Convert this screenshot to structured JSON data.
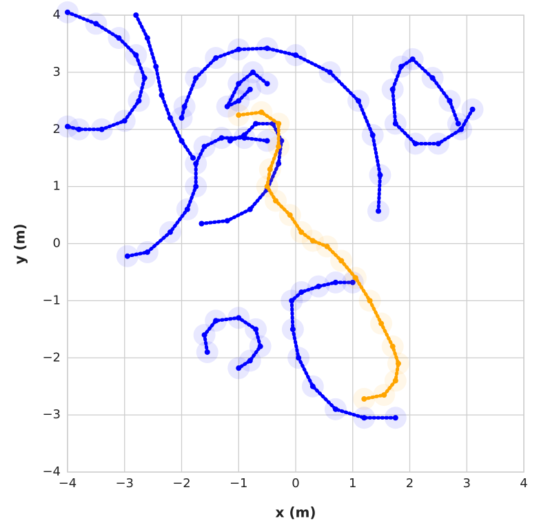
{
  "chart_data": {
    "type": "scatter",
    "x_label": "x (m)",
    "y_label": "y (m)",
    "xlim": [
      -4,
      4
    ],
    "ylim": [
      -4,
      4
    ],
    "xticks": [
      {
        "value": -4,
        "label": "−4"
      },
      {
        "value": -3,
        "label": "−3"
      },
      {
        "value": -2,
        "label": "−2"
      },
      {
        "value": -1,
        "label": "−1"
      },
      0,
      1,
      2,
      3,
      4
    ],
    "yticks": [
      {
        "value": -4,
        "label": "−4"
      },
      {
        "value": -3,
        "label": "−3"
      },
      {
        "value": -2,
        "label": "−2"
      },
      {
        "value": -1,
        "label": "−1"
      },
      0,
      1,
      2,
      3,
      4
    ],
    "grid": true,
    "series": [
      {
        "color": "#0000ff",
        "halo": true,
        "x": [
          -4.0,
          -3.5,
          -3.1,
          -2.8,
          -2.65,
          -2.75,
          -3.0,
          -3.4,
          -3.8,
          -4.0
        ],
        "values": [
          4.05,
          3.85,
          3.6,
          3.3,
          2.9,
          2.5,
          2.15,
          2.0,
          2.0,
          2.05
        ]
      },
      {
        "color": "#0000ff",
        "halo": false,
        "x": [
          -2.8,
          -2.6,
          -2.45,
          -2.35,
          -2.2,
          -2.0,
          -1.8
        ],
        "values": [
          4.0,
          3.6,
          3.1,
          2.6,
          2.2,
          1.8,
          1.5
        ]
      },
      {
        "color": "#0000ff",
        "halo": true,
        "x": [
          1.45,
          1.48,
          1.35,
          1.1,
          0.6,
          0.0,
          -0.5,
          -1.0,
          -1.4,
          -1.75,
          -1.95,
          -2.0
        ],
        "values": [
          0.57,
          1.2,
          1.9,
          2.5,
          3.0,
          3.3,
          3.42,
          3.4,
          3.25,
          2.9,
          2.4,
          2.2
        ]
      },
      {
        "color": "#0000ff",
        "halo": true,
        "x": [
          -2.95,
          -2.6,
          -2.2,
          -1.9,
          -1.75,
          -1.75,
          -1.6,
          -1.3,
          -0.9,
          -0.5
        ],
        "values": [
          -0.22,
          -0.15,
          0.2,
          0.6,
          1.0,
          1.4,
          1.7,
          1.85,
          1.85,
          1.8
        ]
      },
      {
        "color": "#0000ff",
        "halo": false,
        "x": [
          -1.65,
          -1.2,
          -0.8,
          -0.5,
          -0.3,
          -0.25,
          -0.4,
          -0.7,
          -0.9,
          -1.15
        ],
        "values": [
          0.35,
          0.4,
          0.6,
          0.95,
          1.4,
          1.8,
          2.1,
          2.1,
          1.9,
          1.8
        ]
      },
      {
        "color": "#0000ff",
        "halo": true,
        "x": [
          -0.5,
          -0.75,
          -1.0,
          -1.2,
          -1.0,
          -0.8
        ],
        "values": [
          2.8,
          3.0,
          2.8,
          2.4,
          2.5,
          2.7
        ]
      },
      {
        "color": "#0000ff",
        "halo": true,
        "x": [
          3.1,
          2.9,
          2.5,
          2.1,
          1.75,
          1.7,
          1.85,
          2.05,
          2.4,
          2.7,
          2.85
        ],
        "values": [
          2.35,
          2.0,
          1.75,
          1.75,
          2.1,
          2.7,
          3.1,
          3.23,
          2.9,
          2.5,
          2.1
        ]
      },
      {
        "color": "#0000ff",
        "halo": true,
        "x": [
          -1.55,
          -1.6,
          -1.4,
          -1.0,
          -0.7,
          -0.62,
          -0.8,
          -1.0
        ],
        "values": [
          -1.9,
          -1.6,
          -1.35,
          -1.3,
          -1.5,
          -1.8,
          -2.05,
          -2.18
        ]
      },
      {
        "color": "#0000ff",
        "halo": true,
        "x": [
          1.75,
          1.2,
          0.7,
          0.3,
          0.05,
          -0.05,
          -0.07,
          0.1,
          0.4,
          0.7,
          1.0
        ],
        "values": [
          -3.05,
          -3.05,
          -2.9,
          -2.5,
          -2.0,
          -1.5,
          -1.0,
          -0.85,
          -0.75,
          -0.68,
          -0.68
        ]
      },
      {
        "color": "#ffa500",
        "halo": true,
        "x": [
          -1.0,
          -0.6,
          -0.3,
          -0.3,
          -0.45,
          -0.5,
          -0.35,
          -0.1,
          0.1,
          0.3,
          0.55,
          0.8,
          1.05,
          1.3,
          1.5,
          1.7,
          1.8,
          1.75,
          1.55,
          1.2
        ],
        "values": [
          2.25,
          2.3,
          2.1,
          1.7,
          1.3,
          1.0,
          0.75,
          0.5,
          0.2,
          0.05,
          -0.05,
          -0.3,
          -0.6,
          -1.0,
          -1.4,
          -1.8,
          -2.1,
          -2.4,
          -2.65,
          -2.72
        ]
      }
    ]
  }
}
